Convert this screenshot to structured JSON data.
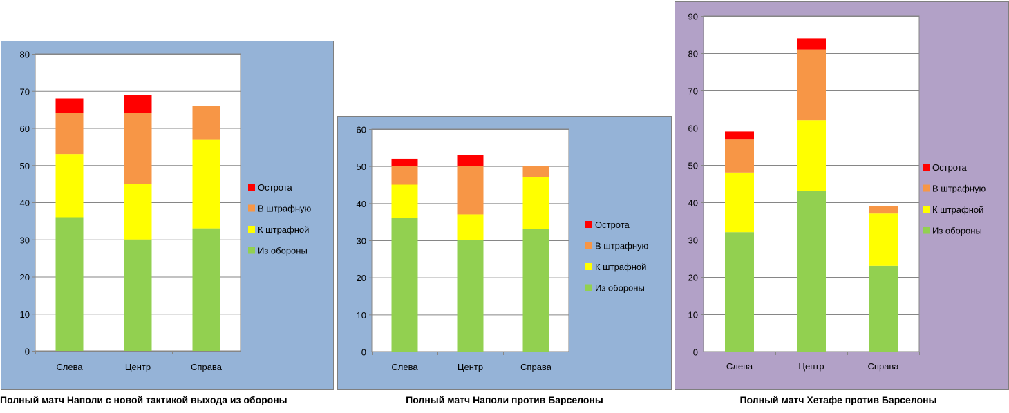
{
  "colors": {
    "red": "#ff0000",
    "orange": "#f79646",
    "yellow": "#ffff00",
    "green": "#92d050",
    "blue_bg": "#95b3d7",
    "purple_bg": "#b2a1c7",
    "gridline": "#868686"
  },
  "legend": [
    "Острота",
    "В штрафную",
    "К штрафной",
    "Из обороны"
  ],
  "chart_data": [
    {
      "type": "bar",
      "stacked": true,
      "caption": "Полный матч Наполи с новой тактикой выхода из обороны",
      "categories": [
        "Слева",
        "Центр",
        "Справа"
      ],
      "ylim": [
        0,
        80
      ],
      "yticks": [
        0,
        10,
        20,
        30,
        40,
        50,
        60,
        70,
        80
      ],
      "series": [
        {
          "name": "Из обороны",
          "color": "#92d050",
          "values": [
            36,
            30,
            33
          ]
        },
        {
          "name": "К штрафной",
          "color": "#ffff00",
          "values": [
            17,
            15,
            24
          ]
        },
        {
          "name": "В штрафную",
          "color": "#f79646",
          "values": [
            11,
            19,
            9
          ]
        },
        {
          "name": "Острота",
          "color": "#ff0000",
          "values": [
            4,
            5,
            0
          ]
        }
      ],
      "legend_position": "right",
      "grid": true
    },
    {
      "type": "bar",
      "stacked": true,
      "caption": "Полный матч Наполи против Барселоны",
      "categories": [
        "Слева",
        "Центр",
        "Справа"
      ],
      "ylim": [
        0,
        60
      ],
      "yticks": [
        0,
        10,
        20,
        30,
        40,
        50,
        60
      ],
      "series": [
        {
          "name": "Из обороны",
          "color": "#92d050",
          "values": [
            36,
            30,
            33
          ]
        },
        {
          "name": "К штрафной",
          "color": "#ffff00",
          "values": [
            9,
            7,
            14
          ]
        },
        {
          "name": "В штрафную",
          "color": "#f79646",
          "values": [
            5,
            13,
            3
          ]
        },
        {
          "name": "Острота",
          "color": "#ff0000",
          "values": [
            2,
            3,
            0
          ]
        }
      ],
      "legend_position": "right",
      "grid": true
    },
    {
      "type": "bar",
      "stacked": true,
      "caption": "Полный матч Хетафе против Барселоны",
      "categories": [
        "Слева",
        "Центр",
        "Справа"
      ],
      "ylim": [
        0,
        90
      ],
      "yticks": [
        0,
        10,
        20,
        30,
        40,
        50,
        60,
        70,
        80,
        90
      ],
      "series": [
        {
          "name": "Из обороны",
          "color": "#92d050",
          "values": [
            32,
            43,
            23
          ]
        },
        {
          "name": "К штрафной",
          "color": "#ffff00",
          "values": [
            16,
            19,
            14
          ]
        },
        {
          "name": "В штрафную",
          "color": "#f79646",
          "values": [
            9,
            19,
            2
          ]
        },
        {
          "name": "Острота",
          "color": "#ff0000",
          "values": [
            2,
            3,
            0
          ]
        }
      ],
      "legend_position": "right",
      "grid": true
    }
  ]
}
